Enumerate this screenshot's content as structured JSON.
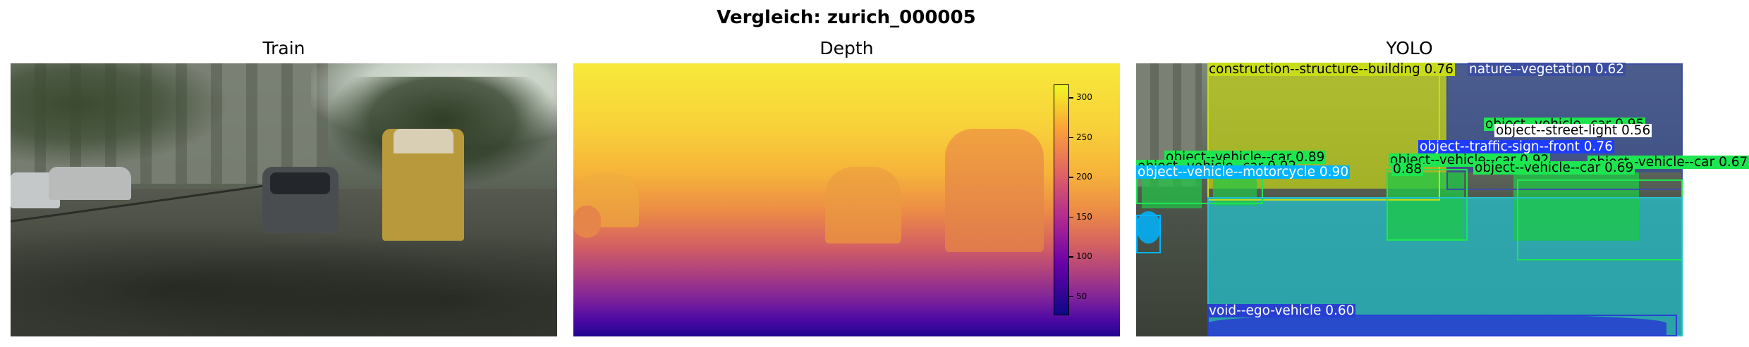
{
  "figure": {
    "title": "Vergleich: zurich_000005"
  },
  "panels": {
    "train": {
      "title": "Train"
    },
    "depth": {
      "title": "Depth"
    },
    "yolo": {
      "title": "YOLO"
    }
  },
  "colorbar": {
    "colormap": "plasma",
    "ticks": [
      "300",
      "250",
      "200",
      "150",
      "100",
      "50"
    ]
  },
  "detections": [
    {
      "label": "construction--structure--building 0.76",
      "color": "#c8dc1a"
    },
    {
      "label": "nature--vegetation 0.62",
      "color": "#3c4ea0"
    },
    {
      "label": "object--vehicle--car 0.95",
      "color": "#1ee650"
    },
    {
      "label": "object--street-light 0.56",
      "color": "#ffffff"
    },
    {
      "label": "object--traffic-sign--front 0.76",
      "color": "#1e3cff"
    },
    {
      "label": "object--vehicle--car 0.67",
      "color": "#1ee650"
    },
    {
      "label": "object--vehicle--car 0.89",
      "color": "#1ee650"
    },
    {
      "label": "object--vehicle--car 0.92",
      "color": "#1ee650"
    },
    {
      "label": "object--vehicle--car 0.92",
      "color": "#1ee650"
    },
    {
      "label": "object--vehicle--car 0.69",
      "color": "#1ee650"
    },
    {
      "label": "object--vehicle--motorcycle 0.90",
      "color": "#00b4ff"
    },
    {
      "label": "0.88",
      "color": "#1ee650"
    },
    {
      "label": "void--ego-vehicle 0.60",
      "color": "#2840d2"
    }
  ]
}
